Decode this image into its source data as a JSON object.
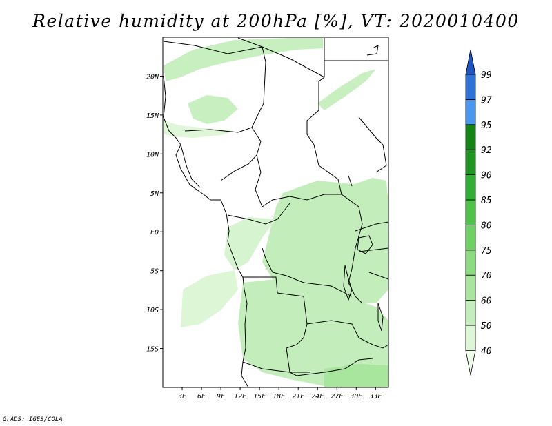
{
  "title": "Relative humidity at 200hPa [%], VT: 2020010400",
  "credit": "GrADS: IGES/COLA",
  "map": {
    "lon_range": [
      0,
      35
    ],
    "lat_range": [
      -20,
      25
    ],
    "x_ticks": [
      "3E",
      "6E",
      "9E",
      "12E",
      "15E",
      "18E",
      "21E",
      "24E",
      "27E",
      "30E",
      "33E"
    ],
    "x_tick_values": [
      3,
      6,
      9,
      12,
      15,
      18,
      21,
      24,
      27,
      30,
      33
    ],
    "y_ticks": [
      "20N",
      "15N",
      "10N",
      "5N",
      "EQ",
      "5S",
      "10S",
      "15S"
    ],
    "y_tick_values": [
      20,
      15,
      10,
      5,
      0,
      -5,
      -10,
      -15
    ]
  },
  "colorbar": {
    "levels": [
      "40",
      "50",
      "60",
      "70",
      "75",
      "80",
      "85",
      "90",
      "92",
      "95",
      "97",
      "99"
    ],
    "colors": [
      "#effcec",
      "#dcf6d6",
      "#c3eebb",
      "#a8e59d",
      "#8ddb80",
      "#6fd064",
      "#4fc24a",
      "#33ae34",
      "#1f9622",
      "#138514",
      "#4a97f0",
      "#2f73d8",
      "#1f55be"
    ]
  }
}
